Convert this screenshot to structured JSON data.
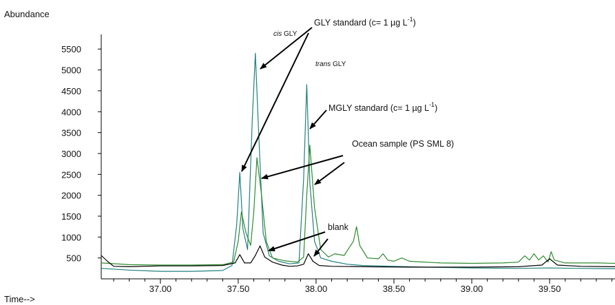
{
  "chart_data": {
    "type": "line",
    "ylabel": "Abundance",
    "xlabel": "Time-->",
    "xlim": [
      36.62,
      39.92
    ],
    "ylim": [
      0,
      5850
    ],
    "x_ticks": [
      "37.00",
      "37.50",
      "38.00",
      "38.50",
      "39.00",
      "39.50"
    ],
    "y_ticks": [
      "500",
      "1000",
      "1500",
      "2000",
      "2500",
      "3000",
      "3500",
      "4000",
      "4500",
      "5000",
      "5500"
    ],
    "grid": false,
    "series": [
      {
        "key": "teal",
        "color": "#1f7f7f",
        "x": [
          36.62,
          36.8,
          37.0,
          37.2,
          37.4,
          37.46,
          37.49,
          37.51,
          37.53,
          37.56,
          37.59,
          37.61,
          37.63,
          37.66,
          37.7,
          37.76,
          37.83,
          37.89,
          37.92,
          37.94,
          37.96,
          37.99,
          38.03,
          38.1,
          38.2,
          38.3,
          38.5,
          38.7,
          39.0,
          39.3,
          39.5,
          39.7,
          39.92
        ],
        "y": [
          250,
          210,
          180,
          180,
          200,
          320,
          1300,
          2550,
          1200,
          700,
          3800,
          5400,
          3600,
          1100,
          550,
          420,
          360,
          380,
          2400,
          4650,
          2300,
          900,
          500,
          420,
          350,
          320,
          300,
          280,
          260,
          250,
          260,
          250,
          240
        ]
      },
      {
        "key": "green",
        "color": "#2d8a2d",
        "x": [
          36.62,
          36.8,
          37.0,
          37.2,
          37.4,
          37.47,
          37.5,
          37.52,
          37.55,
          37.58,
          37.6,
          37.62,
          37.65,
          37.68,
          37.72,
          37.8,
          37.88,
          37.92,
          37.94,
          37.96,
          37.99,
          38.03,
          38.08,
          38.12,
          38.18,
          38.24,
          38.26,
          38.28,
          38.33,
          38.4,
          38.43,
          38.46,
          38.5,
          38.55,
          38.6,
          38.8,
          39.0,
          39.2,
          39.3,
          39.34,
          39.37,
          39.4,
          39.43,
          39.46,
          39.49,
          39.51,
          39.53,
          39.6,
          39.8,
          39.92
        ],
        "y": [
          380,
          340,
          330,
          330,
          340,
          400,
          900,
          1600,
          1100,
          800,
          1600,
          2900,
          2000,
          900,
          500,
          430,
          400,
          520,
          2000,
          3200,
          1700,
          700,
          520,
          600,
          560,
          900,
          1250,
          800,
          500,
          480,
          600,
          450,
          420,
          500,
          420,
          380,
          370,
          380,
          400,
          550,
          450,
          600,
          450,
          550,
          400,
          650,
          450,
          380,
          380,
          370
        ]
      },
      {
        "key": "black",
        "color": "#000000",
        "x": [
          36.62,
          36.66,
          36.7,
          36.8,
          37.0,
          37.2,
          37.4,
          37.48,
          37.51,
          37.54,
          37.58,
          37.61,
          37.64,
          37.67,
          37.72,
          37.78,
          37.83,
          37.88,
          37.92,
          37.95,
          37.98,
          38.02,
          38.1,
          38.3,
          38.6,
          39.0,
          39.3,
          39.45,
          39.5,
          39.55,
          39.7,
          39.92
        ],
        "y": [
          560,
          420,
          300,
          290,
          310,
          310,
          320,
          380,
          580,
          380,
          380,
          560,
          790,
          520,
          400,
          330,
          300,
          310,
          350,
          600,
          420,
          320,
          300,
          290,
          280,
          280,
          290,
          330,
          480,
          330,
          300,
          290
        ]
      }
    ],
    "annotations": {
      "gly_standard": "GLY standard (c= 1 µg L",
      "gly_standard_sup": "-1",
      "gly_standard_close": ")",
      "cis_word": "cis",
      "cis_rest": " GLY",
      "trans_word": "trans",
      "trans_rest": " GLY",
      "mgly_standard": "MGLY standard (c= 1 µg L",
      "mgly_standard_sup": "-1",
      "mgly_standard_close": ")",
      "ocean_sample": "Ocean sample (PS SML 8)",
      "blank": "blank"
    }
  }
}
